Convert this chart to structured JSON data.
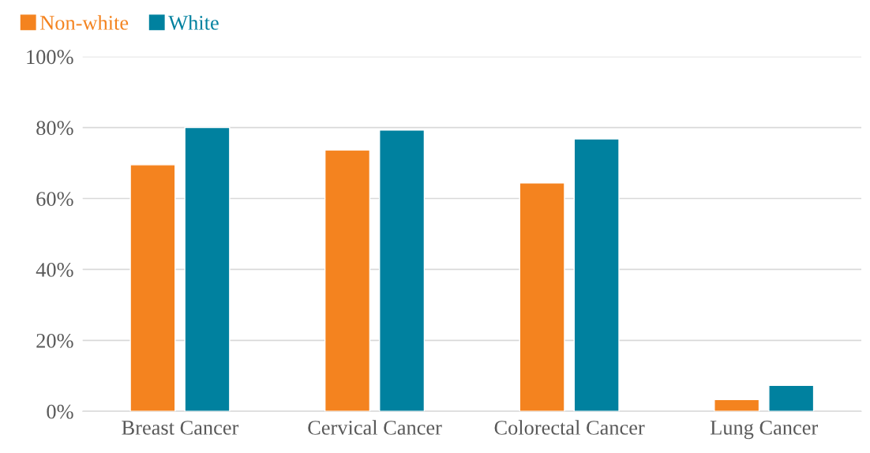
{
  "chart_data": {
    "type": "bar",
    "categories": [
      "Breast Cancer",
      "Cervical Cancer",
      "Colorectal Cancer",
      "Lung Cancer"
    ],
    "series": [
      {
        "name": "Non-white",
        "color": "#f4831f",
        "values": [
          69.5,
          73.7,
          64.4,
          3.3
        ]
      },
      {
        "name": "White",
        "color": "#00819f",
        "values": [
          80.0,
          79.3,
          76.8,
          7.3
        ]
      }
    ],
    "ylim": [
      0,
      100
    ],
    "yticks": [
      {
        "value": 0,
        "label": "0%"
      },
      {
        "value": 20,
        "label": "20%"
      },
      {
        "value": 40,
        "label": "40%"
      },
      {
        "value": 60,
        "label": "60%"
      },
      {
        "value": 80,
        "label": "80%"
      },
      {
        "value": 100,
        "label": "100%"
      }
    ],
    "grid": "y",
    "legend": "top left"
  }
}
